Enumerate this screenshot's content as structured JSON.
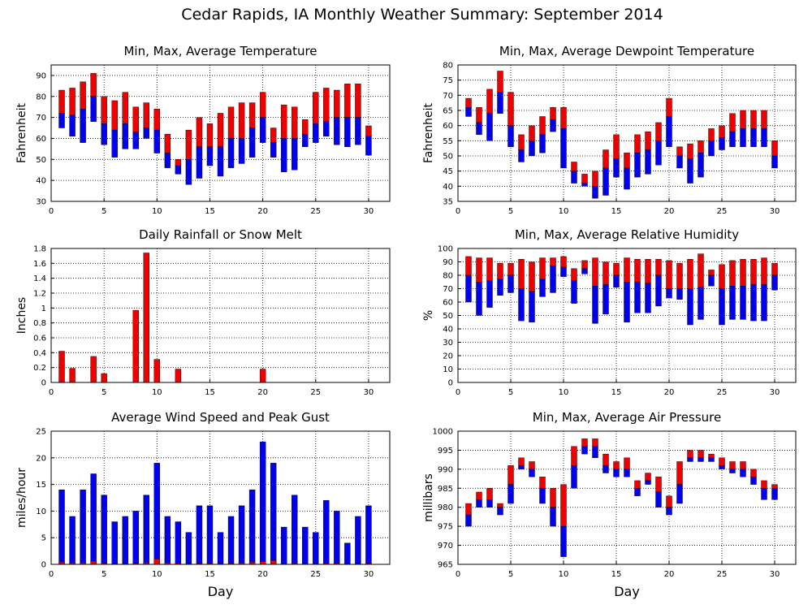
{
  "page_title": "Cedar Rapids, IA Monthly Weather Summary: September 2014",
  "colors": {
    "min_bar": "#0000ee",
    "max_bar": "#ee0000",
    "grid": "#000000"
  },
  "chart_data": [
    {
      "id": "temp",
      "type": "bar",
      "title": "Min, Max, Average Temperature",
      "xlabel": "",
      "ylabel": "Fahrenheit",
      "xlim": [
        0,
        32
      ],
      "ylim": [
        30,
        95
      ],
      "xticks": [
        0,
        5,
        10,
        15,
        20,
        25,
        30
      ],
      "yticks": [
        30,
        40,
        50,
        60,
        70,
        80,
        90
      ],
      "grid": true,
      "series": [
        {
          "role": "max",
          "values": [
            83,
            84,
            87,
            91,
            80,
            78,
            82,
            75,
            77,
            74,
            62,
            50,
            64,
            70,
            67,
            72,
            75,
            77,
            77,
            82,
            65,
            76,
            75,
            69,
            82,
            84,
            83,
            86,
            86,
            66
          ]
        },
        {
          "role": "avg",
          "values": [
            72,
            71,
            74,
            80,
            67,
            64,
            67,
            63,
            65,
            64,
            53,
            47,
            50,
            56,
            56,
            56,
            60,
            60,
            65,
            70,
            58,
            60,
            60,
            62,
            67,
            68,
            70,
            70,
            70,
            61
          ]
        },
        {
          "role": "min",
          "values": [
            65,
            61,
            58,
            68,
            57,
            51,
            55,
            55,
            60,
            53,
            46,
            43,
            38,
            41,
            47,
            42,
            46,
            48,
            51,
            58,
            51,
            44,
            45,
            56,
            58,
            61,
            57,
            56,
            57,
            52
          ]
        }
      ]
    },
    {
      "id": "dew",
      "type": "bar",
      "title": "Min, Max, Average Dewpoint Temperature",
      "xlabel": "",
      "ylabel": "Fahrenheit",
      "xlim": [
        0,
        32
      ],
      "ylim": [
        35,
        80
      ],
      "xticks": [
        0,
        5,
        10,
        15,
        20,
        25,
        30
      ],
      "yticks": [
        35,
        40,
        45,
        50,
        55,
        60,
        65,
        70,
        75,
        80
      ],
      "grid": true,
      "series": [
        {
          "role": "max",
          "values": [
            69,
            66,
            72,
            78,
            71,
            57,
            60,
            63,
            66,
            66,
            48,
            44,
            45,
            52,
            57,
            51,
            57,
            58,
            61,
            69,
            53,
            54,
            55,
            59,
            60,
            64,
            65,
            65,
            65,
            55
          ]
        },
        {
          "role": "avg",
          "values": [
            66,
            61,
            64,
            71,
            60,
            52,
            55,
            57,
            62,
            59,
            45,
            41,
            40,
            46,
            49,
            46,
            51,
            52,
            55,
            63,
            50,
            49,
            51,
            55,
            56,
            58,
            59,
            59,
            59,
            50
          ]
        },
        {
          "role": "min",
          "values": [
            63,
            57,
            55,
            64,
            53,
            48,
            50,
            51,
            58,
            46,
            41,
            40,
            36,
            37,
            43,
            39,
            43,
            44,
            47,
            53,
            46,
            41,
            43,
            50,
            52,
            53,
            53,
            53,
            53,
            46
          ]
        }
      ]
    },
    {
      "id": "rain",
      "type": "bar",
      "title": "Daily Rainfall or Snow Melt",
      "xlabel": "",
      "ylabel": "Inches",
      "xlim": [
        0,
        32
      ],
      "ylim": [
        0,
        1.8
      ],
      "xticks": [
        0,
        5,
        10,
        15,
        20,
        25,
        30
      ],
      "yticks": [
        0,
        0.2,
        0.4,
        0.6,
        0.8,
        1,
        1.2,
        1.4,
        1.6,
        1.8
      ],
      "grid": true,
      "series": [
        {
          "role": "max",
          "values": [
            0.42,
            0.19,
            0,
            0.35,
            0.12,
            0,
            0,
            0.97,
            1.74,
            0.31,
            0,
            0.18,
            0,
            0,
            0,
            0,
            0,
            0,
            0,
            0.18,
            0,
            0,
            0,
            0,
            0,
            0,
            0,
            0,
            0,
            0
          ]
        }
      ]
    },
    {
      "id": "rh",
      "type": "bar",
      "title": "Min, Max, Average Relative Humidity",
      "xlabel": "",
      "ylabel": "%",
      "xlim": [
        0,
        32
      ],
      "ylim": [
        0,
        100
      ],
      "xticks": [
        0,
        5,
        10,
        15,
        20,
        25,
        30
      ],
      "yticks": [
        0,
        10,
        20,
        30,
        40,
        50,
        60,
        70,
        80,
        90,
        100
      ],
      "grid": true,
      "series": [
        {
          "role": "max",
          "values": [
            94,
            93,
            93,
            89,
            89,
            92,
            90,
            93,
            93,
            94,
            85,
            91,
            93,
            90,
            89,
            93,
            92,
            92,
            92,
            91,
            89,
            92,
            96,
            84,
            88,
            91,
            92,
            92,
            93,
            89
          ]
        },
        {
          "role": "avg",
          "values": [
            80,
            75,
            76,
            77,
            80,
            70,
            68,
            77,
            87,
            86,
            76,
            85,
            72,
            73,
            80,
            75,
            75,
            74,
            80,
            70,
            70,
            70,
            71,
            80,
            70,
            72,
            72,
            73,
            73,
            80
          ]
        },
        {
          "role": "min",
          "values": [
            60,
            50,
            56,
            65,
            67,
            46,
            45,
            64,
            67,
            79,
            59,
            81,
            44,
            51,
            71,
            45,
            52,
            52,
            57,
            63,
            62,
            43,
            47,
            72,
            43,
            47,
            47,
            46,
            46,
            69
          ]
        }
      ]
    },
    {
      "id": "wind",
      "type": "bar",
      "title": "Average Wind Speed and Peak Gust",
      "xlabel": "Day",
      "ylabel": "miles/hour",
      "xlim": [
        0,
        32
      ],
      "ylim": [
        0,
        25
      ],
      "xticks": [
        0,
        5,
        10,
        15,
        20,
        25,
        30
      ],
      "yticks": [
        0,
        5,
        10,
        15,
        20,
        25
      ],
      "grid": true,
      "series": [
        {
          "role": "min",
          "values": [
            14,
            9,
            14,
            17,
            13,
            8,
            9,
            10,
            13,
            19,
            9,
            8,
            6,
            11,
            11,
            6,
            9,
            11,
            14,
            23,
            19,
            7,
            13,
            7,
            6,
            12,
            10,
            4,
            9,
            11
          ]
        },
        {
          "role": "max",
          "values": [
            0.4,
            0.3,
            0.3,
            0.6,
            0.2,
            0,
            0,
            0.2,
            0.3,
            1,
            0.3,
            0.2,
            0,
            0.2,
            0.2,
            0,
            0.2,
            0.3,
            0.4,
            0.5,
            0.7,
            0,
            0.2,
            0,
            0,
            0.2,
            0.2,
            0,
            0,
            0.2
          ]
        }
      ]
    },
    {
      "id": "press",
      "type": "bar",
      "title": "Min, Max, Average Air Pressure",
      "xlabel": "Day",
      "ylabel": "millibars",
      "xlim": [
        0,
        32
      ],
      "ylim": [
        965,
        1000
      ],
      "xticks": [
        0,
        5,
        10,
        15,
        20,
        25,
        30
      ],
      "yticks": [
        965,
        970,
        975,
        980,
        985,
        990,
        995,
        1000
      ],
      "grid": true,
      "series": [
        {
          "role": "max",
          "values": [
            981,
            984,
            985,
            981,
            991,
            993,
            992,
            988,
            985,
            986,
            996,
            998,
            998,
            994,
            992,
            993,
            987,
            989,
            988,
            983,
            992,
            995,
            995,
            994,
            993,
            992,
            992,
            990,
            987,
            986
          ]
        },
        {
          "role": "avg",
          "values": [
            978,
            982,
            982,
            980,
            986,
            991,
            990,
            985,
            980,
            975,
            991,
            996,
            996,
            991,
            990,
            990,
            985,
            987,
            984,
            980,
            986,
            993,
            993,
            993,
            991,
            990,
            990,
            988,
            985,
            985
          ]
        },
        {
          "role": "min",
          "values": [
            975,
            980,
            980,
            978,
            981,
            990,
            988,
            981,
            975,
            967,
            985,
            994,
            993,
            989,
            988,
            988,
            983,
            986,
            980,
            978,
            981,
            992,
            992,
            992,
            990,
            989,
            988,
            986,
            982,
            982
          ]
        }
      ]
    }
  ]
}
